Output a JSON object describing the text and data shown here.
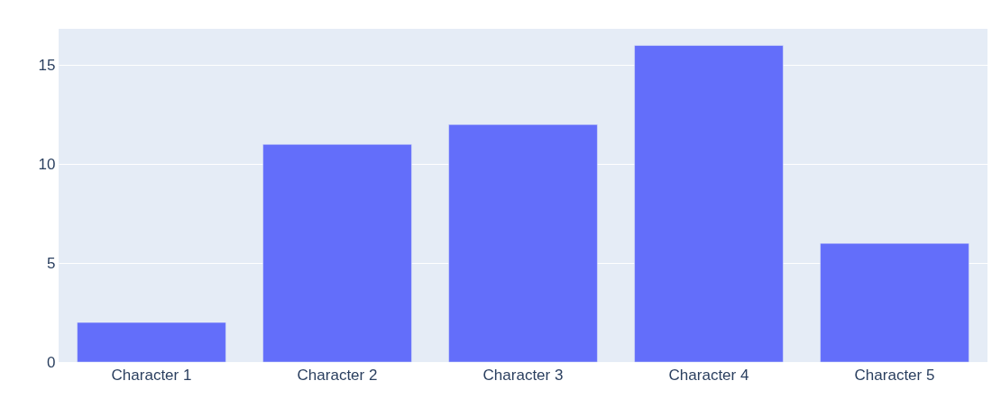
{
  "chart_data": {
    "type": "bar",
    "categories": [
      "Character 1",
      "Character 2",
      "Character 3",
      "Character 4",
      "Character 5"
    ],
    "values": [
      2,
      11,
      12,
      16,
      6
    ],
    "color": "#636efa",
    "ylim": [
      0,
      16.84
    ],
    "yticks": [
      0,
      5,
      10,
      15
    ],
    "grid": "y"
  }
}
